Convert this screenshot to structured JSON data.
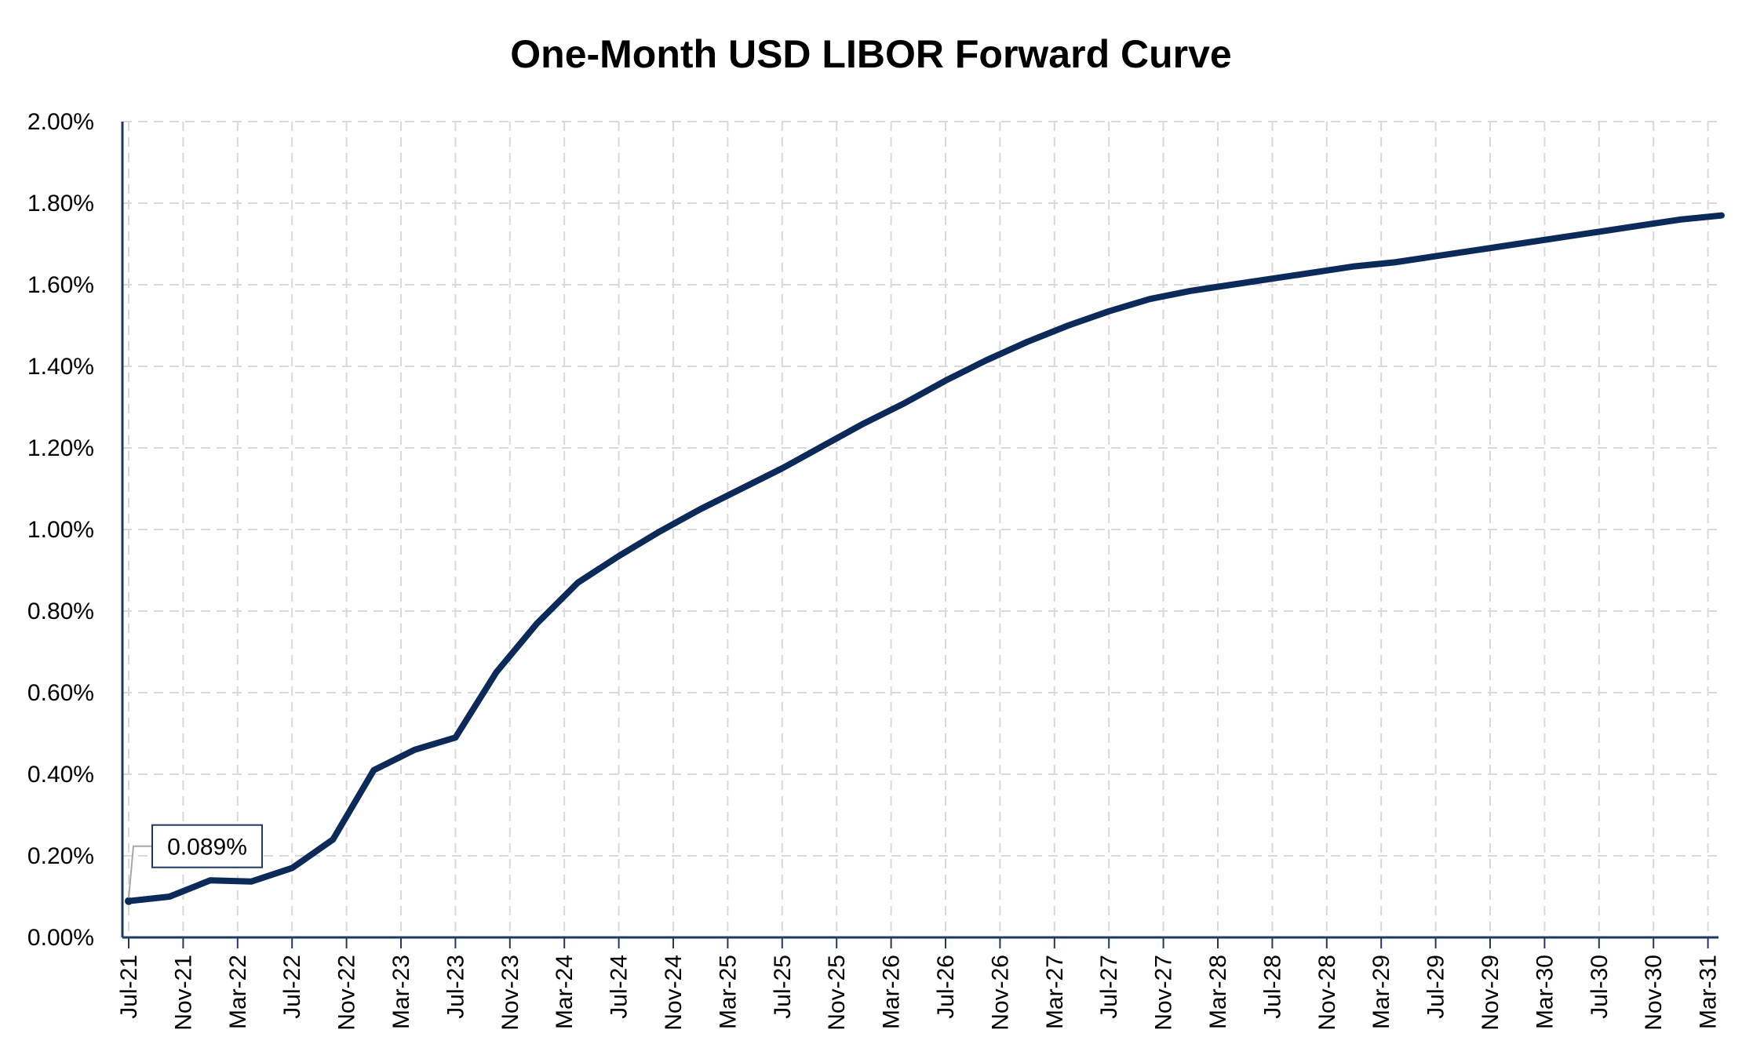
{
  "chart_data": {
    "type": "line",
    "title": "One-Month USD LIBOR Forward Curve",
    "xlabel": "",
    "ylabel": "",
    "y_ticks": [
      "0.00%",
      "0.20%",
      "0.40%",
      "0.60%",
      "0.80%",
      "1.00%",
      "1.20%",
      "1.40%",
      "1.60%",
      "1.80%",
      "2.00%"
    ],
    "ylim": [
      0,
      2.0
    ],
    "x_ticks": [
      "Jul-21",
      "Nov-21",
      "Mar-22",
      "Jul-22",
      "Nov-22",
      "Mar-23",
      "Jul-23",
      "Nov-23",
      "Mar-24",
      "Jul-24",
      "Nov-24",
      "Mar-25",
      "Jul-25",
      "Nov-25",
      "Mar-26",
      "Jul-26",
      "Nov-26",
      "Mar-27",
      "Jul-27",
      "Nov-27",
      "Mar-28",
      "Jul-28",
      "Nov-28",
      "Mar-29",
      "Jul-29",
      "Nov-29",
      "Mar-30",
      "Jul-30",
      "Nov-30",
      "Mar-31"
    ],
    "grid": true,
    "legend": "none",
    "series": [
      {
        "color": "#0b2a5a",
        "x": [
          "Jul-21",
          "Oct-21",
          "Jan-22",
          "Apr-22",
          "Jul-22",
          "Oct-22",
          "Jan-23",
          "Apr-23",
          "Jul-23",
          "Oct-23",
          "Jan-24",
          "Apr-24",
          "Jul-24",
          "Oct-24",
          "Jan-25",
          "Apr-25",
          "Jul-25",
          "Oct-25",
          "Jan-26",
          "Apr-26",
          "Jul-26",
          "Oct-26",
          "Jan-27",
          "Apr-27",
          "Jul-27",
          "Oct-27",
          "Jan-28",
          "Apr-28",
          "Jul-28",
          "Oct-28",
          "Jan-29",
          "Apr-29",
          "Jul-29",
          "Oct-29",
          "Jan-30",
          "Apr-30",
          "Jul-30",
          "Oct-30",
          "Jan-31",
          "Apr-31"
        ],
        "y": [
          0.089,
          0.1,
          0.14,
          0.137,
          0.17,
          0.24,
          0.41,
          0.46,
          0.49,
          0.65,
          0.77,
          0.87,
          0.935,
          0.995,
          1.05,
          1.1,
          1.15,
          1.205,
          1.26,
          1.31,
          1.365,
          1.415,
          1.46,
          1.5,
          1.535,
          1.565,
          1.585,
          1.6,
          1.615,
          1.63,
          1.645,
          1.655,
          1.67,
          1.685,
          1.7,
          1.715,
          1.73,
          1.745,
          1.76,
          1.77
        ]
      }
    ],
    "annotations": [
      {
        "text": "0.089%",
        "x": "Jul-21",
        "y": 0.089
      }
    ]
  }
}
